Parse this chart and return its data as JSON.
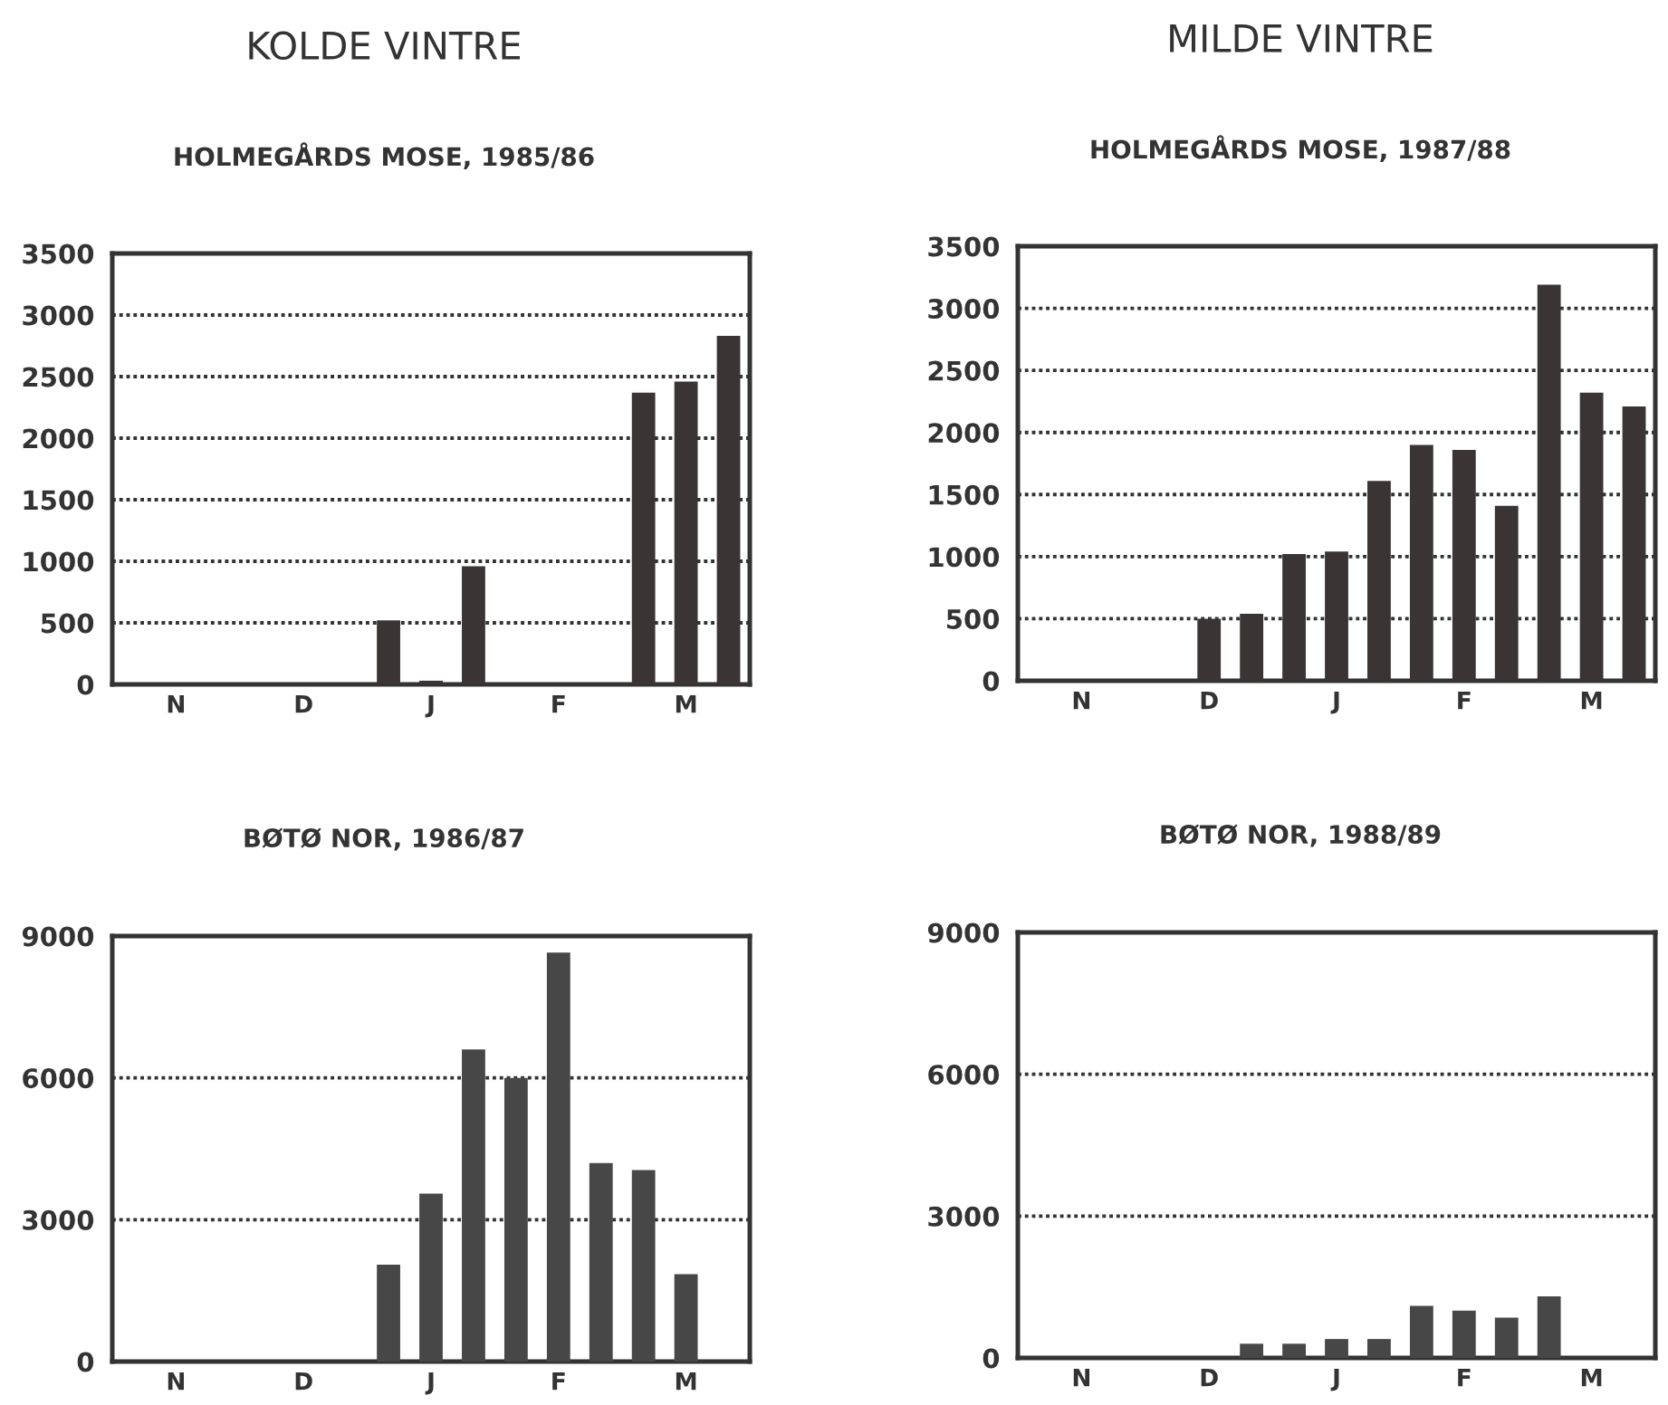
{
  "chart_data": [
    {
      "type": "bar",
      "title": "HOLMEGÅRDS MOSE, 1985/86",
      "annotations": [
        "KOLDE VINTRE"
      ],
      "categories": [
        null,
        "N",
        null,
        null,
        "D",
        null,
        null,
        "J",
        null,
        null,
        "F",
        null,
        null,
        "M",
        null
      ],
      "values": [
        null,
        null,
        null,
        null,
        null,
        null,
        520,
        30,
        960,
        null,
        null,
        null,
        2370,
        2460,
        2830
      ],
      "color": "#3a3434",
      "ylim": [
        0,
        3500
      ],
      "yticks": [
        0,
        500,
        1000,
        1500,
        2000,
        2500,
        3000,
        3500
      ],
      "grid": "y"
    },
    {
      "type": "bar",
      "title": "HOLMEGÅRDS MOSE, 1987/88",
      "annotations": [
        "MILDE VINTRE"
      ],
      "categories": [
        null,
        "N",
        null,
        null,
        "D",
        null,
        null,
        "J",
        null,
        null,
        "F",
        null,
        null,
        "M",
        null
      ],
      "values": [
        null,
        null,
        null,
        null,
        500,
        540,
        1020,
        1040,
        1610,
        1900,
        1860,
        1410,
        3190,
        2320,
        2210
      ],
      "color": "#3a3434",
      "ylim": [
        0,
        3500
      ],
      "yticks": [
        0,
        500,
        1000,
        1500,
        2000,
        2500,
        3000,
        3500
      ],
      "grid": "y"
    },
    {
      "type": "bar",
      "title": "BØTØ NOR, 1986/87",
      "categories": [
        null,
        "N",
        null,
        null,
        "D",
        null,
        null,
        "J",
        null,
        null,
        "F",
        null,
        null,
        "M",
        null
      ],
      "values": [
        null,
        null,
        null,
        null,
        null,
        null,
        2050,
        3550,
        6600,
        6000,
        8650,
        4200,
        4050,
        1850,
        null
      ],
      "color": "#474747",
      "ylim": [
        0,
        9000
      ],
      "yticks": [
        0,
        3000,
        6000,
        9000
      ],
      "grid": "y"
    },
    {
      "type": "bar",
      "title": "BØTØ NOR, 1988/89",
      "categories": [
        null,
        "N",
        null,
        null,
        "D",
        null,
        null,
        "J",
        null,
        null,
        "F",
        null,
        null,
        "M",
        null
      ],
      "values": [
        null,
        null,
        null,
        null,
        null,
        300,
        300,
        400,
        400,
        1100,
        1000,
        850,
        1300,
        null,
        null
      ],
      "color": "#474747",
      "ylim": [
        0,
        9000
      ],
      "yticks": [
        0,
        3000,
        6000,
        9000
      ],
      "grid": "y"
    }
  ]
}
